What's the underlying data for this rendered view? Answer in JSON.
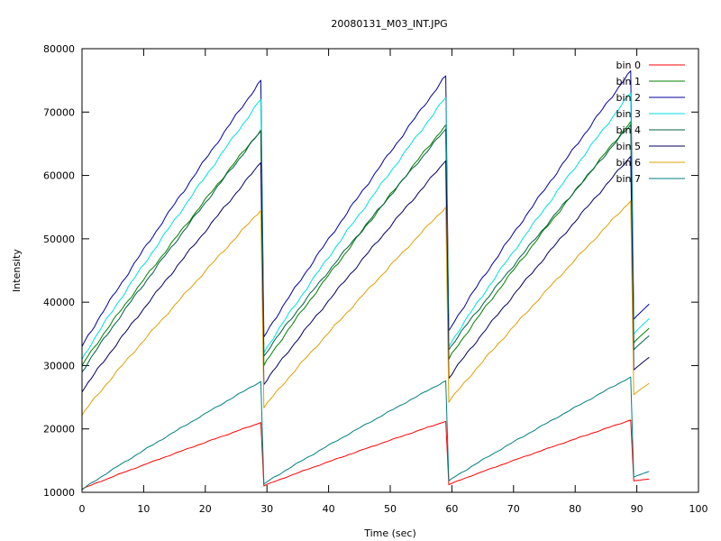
{
  "chart_data": {
    "type": "line",
    "title": "20080131_M03_INT.JPG",
    "xlabel": "Time (sec)",
    "ylabel": "Intensity",
    "xlim": [
      0,
      100
    ],
    "ylim": [
      10000,
      80000
    ],
    "xticks": [
      0,
      10,
      20,
      30,
      40,
      50,
      60,
      70,
      80,
      90,
      100
    ],
    "yticks": [
      10000,
      20000,
      30000,
      40000,
      50000,
      60000,
      70000,
      80000
    ],
    "grid": false,
    "legend_position": "top-right",
    "x_segments": [
      [
        0,
        29
      ],
      [
        29.5,
        59
      ],
      [
        59.5,
        89
      ],
      [
        89.5,
        92
      ]
    ],
    "series": [
      {
        "name": "bin 0",
        "color": "#ff0000",
        "cycles": [
          [
            10500,
            21000
          ],
          [
            11000,
            21200
          ],
          [
            11200,
            21400
          ],
          [
            11800,
            12100
          ]
        ]
      },
      {
        "name": "bin 1",
        "color": "#008000",
        "cycles": [
          [
            30000,
            67200
          ],
          [
            30000,
            68000
          ],
          [
            31000,
            68500
          ],
          [
            33600,
            35900
          ]
        ]
      },
      {
        "name": "bin 2",
        "color": "#0000a0",
        "cycles": [
          [
            33000,
            75000
          ],
          [
            34500,
            75700
          ],
          [
            35500,
            76500
          ],
          [
            37300,
            39700
          ]
        ]
      },
      {
        "name": "bin 3",
        "color": "#00e0e0",
        "cycles": [
          [
            31000,
            72000
          ],
          [
            32000,
            72300
          ],
          [
            33000,
            73000
          ],
          [
            35000,
            37400
          ]
        ]
      },
      {
        "name": "bin 4",
        "color": "#006040",
        "cycles": [
          [
            29000,
            67000
          ],
          [
            31500,
            67300
          ],
          [
            32500,
            68000
          ],
          [
            32500,
            34700
          ]
        ]
      },
      {
        "name": "bin 5",
        "color": "#000060",
        "cycles": [
          [
            25800,
            62000
          ],
          [
            27000,
            62300
          ],
          [
            28000,
            63000
          ],
          [
            29300,
            31300
          ]
        ]
      },
      {
        "name": "bin 6",
        "color": "#e0a000",
        "cycles": [
          [
            22200,
            54500
          ],
          [
            23300,
            55000
          ],
          [
            24200,
            56000
          ],
          [
            25400,
            27200
          ]
        ]
      },
      {
        "name": "bin 7",
        "color": "#008080",
        "cycles": [
          [
            10400,
            27500
          ],
          [
            11300,
            27600
          ],
          [
            11800,
            28200
          ],
          [
            12400,
            13300
          ]
        ]
      }
    ]
  }
}
